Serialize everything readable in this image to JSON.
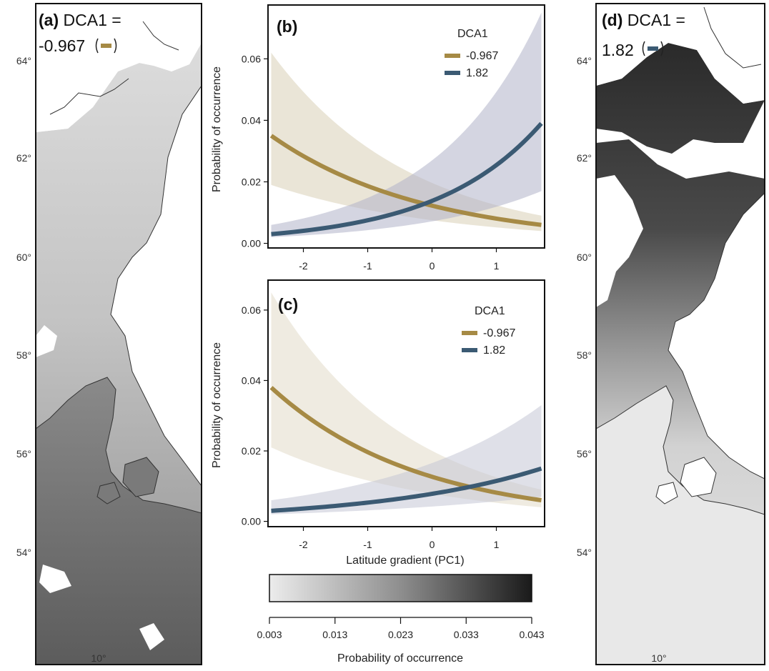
{
  "colors": {
    "dca_low": "#a68a45",
    "dca_high": "#3b5a73",
    "band_low": "#d8d0b6",
    "band_high": "#b0b2c9"
  },
  "maps": [
    {
      "id": "a",
      "title": "(a) DCA1 =",
      "value": "-0.967",
      "lat_ticks": [
        "64°",
        "62°",
        "60°",
        "58°",
        "56°",
        "54°"
      ],
      "lon_ticks": [
        "10°"
      ]
    },
    {
      "id": "d",
      "title": "(d) DCA1 =",
      "value": "1.82",
      "lat_ticks": [
        "64°",
        "62°",
        "60°",
        "58°",
        "56°",
        "54°"
      ],
      "lon_ticks": [
        "10°"
      ]
    }
  ],
  "chart_data": [
    {
      "type": "line",
      "label": "(b)",
      "ylabel": "Probability of occurrence",
      "xlabel": "",
      "xlim": [
        -2.55,
        1.75
      ],
      "ylim": [
        -0.0015,
        0.0775
      ],
      "xticks": [
        -2,
        -1,
        0,
        1
      ],
      "yticks": [
        0.0,
        0.02,
        0.04,
        0.06
      ],
      "ytick_labels": [
        "0.00",
        "0.02",
        "0.04",
        "0.06"
      ],
      "legend_title": "DCA1",
      "legend_position": "top-right",
      "series": [
        {
          "name": "-0.967",
          "color": "#a68a45",
          "band": "#d8d0b6",
          "x": [
            -2.5,
            1.7
          ],
          "y": [
            0.035,
            0.006
          ],
          "lower": [
            0.019,
            0.004
          ],
          "upper": [
            0.062,
            0.009
          ]
        },
        {
          "name": "1.82",
          "color": "#3b5a73",
          "band": "#b0b2c9",
          "x": [
            -2.5,
            1.7
          ],
          "y": [
            0.003,
            0.039
          ],
          "lower": [
            0.002,
            0.017
          ],
          "upper": [
            0.006,
            0.075
          ]
        }
      ]
    },
    {
      "type": "line",
      "label": "(c)",
      "ylabel": "Probability of occurrence",
      "xlabel": "Latitude gradient (PC1)",
      "xlim": [
        -2.55,
        1.75
      ],
      "ylim": [
        -0.0015,
        0.0685
      ],
      "xticks": [
        -2,
        -1,
        0,
        1
      ],
      "yticks": [
        0.0,
        0.02,
        0.04,
        0.06
      ],
      "ytick_labels": [
        "0.00",
        "0.02",
        "0.04",
        "0.06"
      ],
      "legend_title": "DCA1",
      "legend_position": "top-right",
      "series": [
        {
          "name": "-0.967",
          "color": "#a68a45",
          "band": "#e1dbc9",
          "x": [
            -2.5,
            1.7
          ],
          "y": [
            0.038,
            0.006
          ],
          "lower": [
            0.021,
            0.004
          ],
          "upper": [
            0.065,
            0.009
          ]
        },
        {
          "name": "1.82",
          "color": "#3b5a73",
          "band": "#c4c6d6",
          "x": [
            -2.5,
            1.7
          ],
          "y": [
            0.003,
            0.015
          ],
          "lower": [
            0.002,
            0.007
          ],
          "upper": [
            0.006,
            0.033
          ]
        }
      ]
    }
  ],
  "colorbar": {
    "label": "Probability of occurrence",
    "min": 0.003,
    "max": 0.043,
    "tick_labels": [
      "0.003",
      "0.013",
      "0.023",
      "0.033",
      "0.043"
    ]
  }
}
